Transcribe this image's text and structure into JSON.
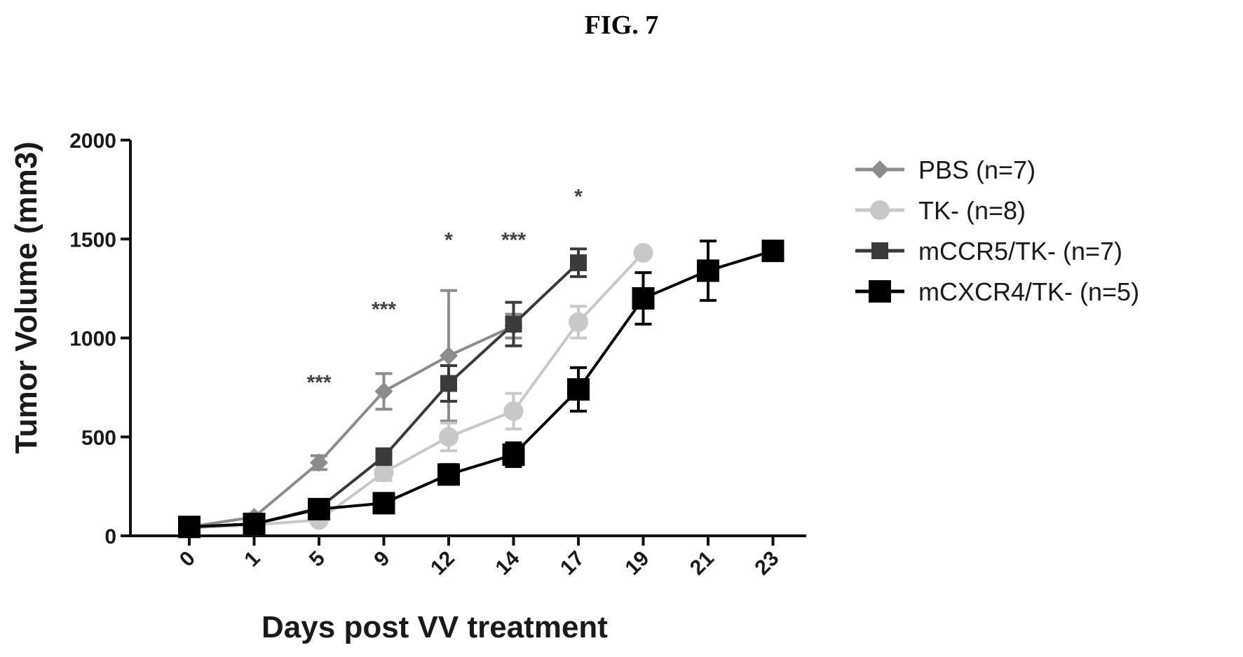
{
  "figure": {
    "title": "FIG. 7"
  },
  "chart_data": {
    "type": "line",
    "xlabel": "Days post VV treatment",
    "ylabel": "Tumor Volume (mm3)",
    "x": [
      0,
      1,
      5,
      9,
      12,
      14,
      17,
      19,
      21,
      23
    ],
    "ylim": [
      0,
      2000
    ],
    "yticks": [
      0,
      500,
      1000,
      1500,
      2000
    ],
    "grid": false,
    "legend_position": "right",
    "series": [
      {
        "name": "PBS (n=7)",
        "marker": "diamond",
        "color": "#8c8c8c",
        "points": [
          {
            "x": 0,
            "y": 45,
            "err": 10
          },
          {
            "x": 1,
            "y": 95,
            "err": 15
          },
          {
            "x": 5,
            "y": 370,
            "err": 35
          },
          {
            "x": 9,
            "y": 730,
            "err": 90
          },
          {
            "x": 12,
            "y": 910,
            "err": 330
          },
          {
            "x": 14,
            "y": 1060,
            "err": 60
          }
        ]
      },
      {
        "name": "TK- (n=8)",
        "marker": "circle",
        "color": "#c8c8c8",
        "points": [
          {
            "x": 0,
            "y": 40,
            "err": 10
          },
          {
            "x": 1,
            "y": 55,
            "err": 10
          },
          {
            "x": 5,
            "y": 80,
            "err": 15
          },
          {
            "x": 9,
            "y": 320,
            "err": 40
          },
          {
            "x": 12,
            "y": 500,
            "err": 70
          },
          {
            "x": 14,
            "y": 630,
            "err": 90
          },
          {
            "x": 17,
            "y": 1080,
            "err": 80
          },
          {
            "x": 19,
            "y": 1430,
            "err": 20
          }
        ]
      },
      {
        "name": "mCCR5/TK- (n=7)",
        "marker": "square",
        "color": "#3a3a3a",
        "points": [
          {
            "x": 0,
            "y": 45,
            "err": 10
          },
          {
            "x": 1,
            "y": 60,
            "err": 10
          },
          {
            "x": 5,
            "y": 140,
            "err": 20
          },
          {
            "x": 9,
            "y": 400,
            "err": 40
          },
          {
            "x": 12,
            "y": 770,
            "err": 90
          },
          {
            "x": 14,
            "y": 1070,
            "err": 110
          },
          {
            "x": 17,
            "y": 1380,
            "err": 70
          }
        ]
      },
      {
        "name": "mCXCR4/TK- (n=5)",
        "marker": "square",
        "color": "#000000",
        "points": [
          {
            "x": 0,
            "y": 45,
            "err": 10
          },
          {
            "x": 1,
            "y": 60,
            "err": 10
          },
          {
            "x": 5,
            "y": 135,
            "err": 15
          },
          {
            "x": 9,
            "y": 165,
            "err": 20
          },
          {
            "x": 12,
            "y": 310,
            "err": 50
          },
          {
            "x": 14,
            "y": 410,
            "err": 60
          },
          {
            "x": 17,
            "y": 740,
            "err": 110
          },
          {
            "x": 19,
            "y": 1200,
            "err": 130
          },
          {
            "x": 21,
            "y": 1340,
            "err": 150
          },
          {
            "x": 23,
            "y": 1440,
            "err": 20
          }
        ]
      }
    ],
    "annotations": [
      {
        "text": "***",
        "x": 5,
        "y": 740
      },
      {
        "text": "***",
        "x": 9,
        "y": 1110
      },
      {
        "text": "*",
        "x": 12,
        "y": 1460
      },
      {
        "text": "***",
        "x": 14,
        "y": 1460
      },
      {
        "text": "*",
        "x": 17,
        "y": 1680
      }
    ]
  }
}
